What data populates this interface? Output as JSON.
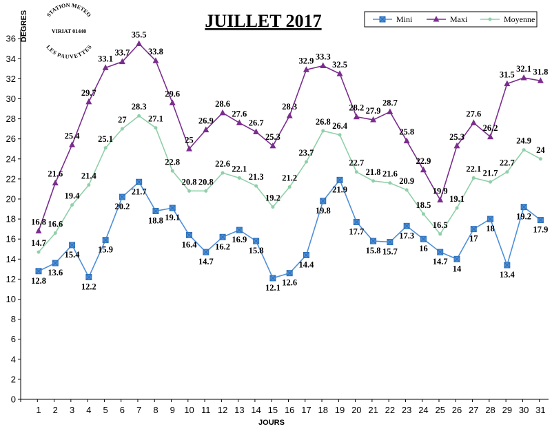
{
  "chart_data": {
    "type": "line",
    "title": "JUILLET 2017",
    "xlabel": "JOURS",
    "ylabel": "DEGRES",
    "x": [
      1,
      2,
      3,
      4,
      5,
      6,
      7,
      8,
      9,
      10,
      11,
      12,
      13,
      14,
      15,
      16,
      17,
      18,
      19,
      20,
      21,
      22,
      23,
      24,
      25,
      26,
      27,
      28,
      29,
      30,
      31
    ],
    "ylim": [
      0,
      37
    ],
    "yticks": [
      0,
      2,
      4,
      6,
      8,
      10,
      12,
      14,
      16,
      18,
      20,
      22,
      24,
      26,
      28,
      30,
      32,
      34,
      36
    ],
    "legend_position": "top-right",
    "series": [
      {
        "name": "Mini",
        "color": "#4f8fd8",
        "marker": "square",
        "values": [
          12.8,
          13.6,
          15.4,
          12.2,
          15.9,
          20.2,
          21.7,
          18.8,
          19.1,
          16.4,
          14.7,
          16.2,
          16.9,
          15.8,
          12.1,
          12.6,
          14.4,
          19.8,
          21.9,
          17.7,
          15.8,
          15.7,
          17.3,
          16,
          14.7,
          14,
          17,
          18,
          13.4,
          19.2,
          17.9
        ],
        "labels": [
          "12.8",
          "13.6",
          "15.4",
          "12.2",
          "15.9",
          "20.2",
          "21.7",
          "18.8",
          "19.1",
          "16.4",
          "14.7",
          "16.2",
          "16.9",
          "15.8",
          "12.1",
          "12.6",
          "14.4",
          "19.8",
          "21.9",
          "17.7",
          "15.8",
          "15.7",
          "17.3",
          "16",
          "14.7",
          "14",
          "17",
          "18",
          "13.4",
          "19.2",
          "17.9"
        ]
      },
      {
        "name": "Maxi",
        "color": "#7b2d8e",
        "marker": "triangle",
        "values": [
          16.8,
          21.6,
          25.4,
          29.7,
          33.1,
          33.7,
          35.5,
          33.8,
          29.6,
          25,
          26.9,
          28.6,
          27.6,
          26.7,
          25.3,
          28.3,
          32.9,
          33.3,
          32.5,
          28.2,
          27.9,
          28.7,
          25.8,
          22.9,
          19.9,
          25.3,
          27.6,
          26.2,
          31.5,
          32.1,
          31.8
        ],
        "labels": [
          "16.8",
          "21.6",
          "25.4",
          "29.7",
          "33.1",
          "33.7",
          "35.5",
          "33.8",
          "29.6",
          "25",
          "26.9",
          "28.6",
          "27.6",
          "26.7",
          "25.3",
          "28.3",
          "32.9",
          "33.3",
          "32.5",
          "28.2",
          "27.9",
          "28.7",
          "25.8",
          "22.9",
          "19.9",
          "25.3",
          "27.6",
          "26.2",
          "31.5",
          "32.1",
          "31.8"
        ]
      },
      {
        "name": "Moyenne",
        "color": "#8fd0a8",
        "marker": "dot",
        "values": [
          14.7,
          16.6,
          19.4,
          21.4,
          25.1,
          27,
          28.3,
          27.1,
          22.8,
          20.8,
          20.8,
          22.6,
          22.1,
          21.3,
          19.2,
          21.2,
          23.7,
          26.8,
          26.4,
          22.7,
          21.8,
          21.6,
          20.9,
          18.5,
          16.5,
          19.1,
          22.1,
          21.7,
          22.7,
          24.9,
          24
        ],
        "labels": [
          "14.7",
          "16.6",
          "19.4",
          "21.4",
          "25.1",
          "27",
          "28.3",
          "27.1",
          "22.8",
          "20.8",
          "20.8",
          "22.6",
          "22.1",
          "21.3",
          "19.2",
          "21.2",
          "23.7",
          "26.8",
          "26.4",
          "22.7",
          "21.8",
          "21.6",
          "20.9",
          "18.5",
          "16.5",
          "19.1",
          "22.1",
          "21.7",
          "22.7",
          "24.9",
          "24"
        ]
      }
    ]
  },
  "stamp": {
    "line1": "STATION METEO",
    "line2": "VIRIAT 01440",
    "line3": "LES PAUVETTES"
  }
}
